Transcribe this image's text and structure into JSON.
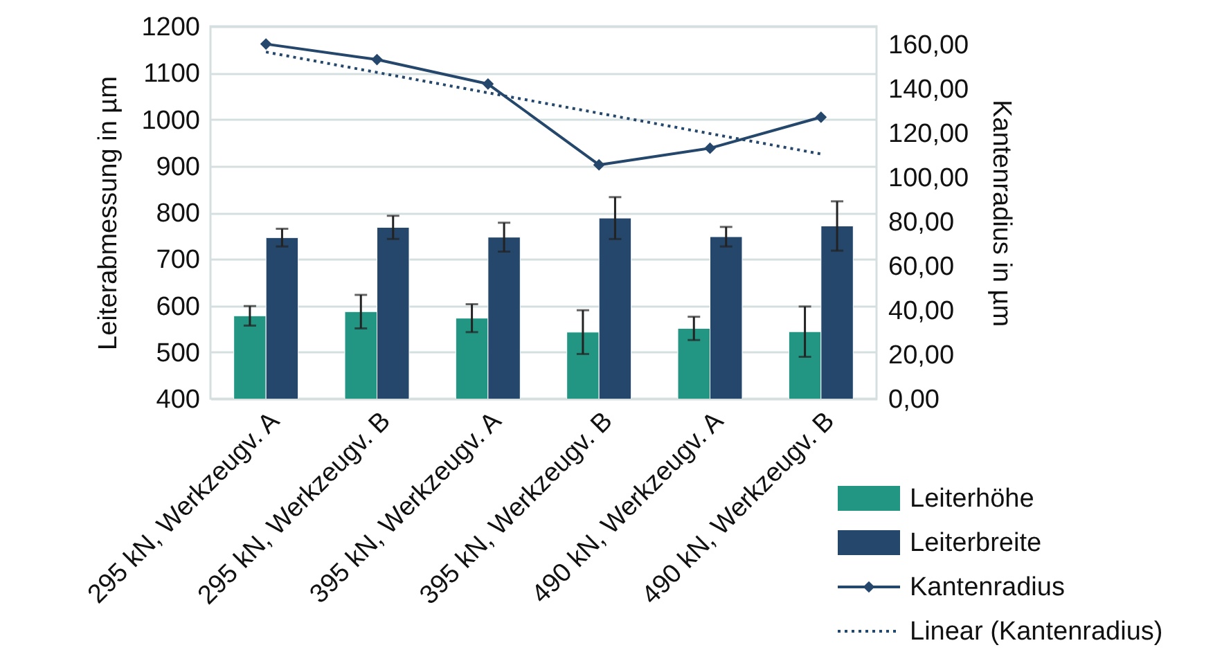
{
  "chart_data": {
    "type": "bar",
    "categories": [
      "295 kN, Werkzeugv. A",
      "295 kN, Werkzeugv. B",
      "395 kN, Werkzeugv. A",
      "395 kN, Werkzeugv. B",
      "490 kN, Werkzeugv. A",
      "490 kN, Werkzeugv. B"
    ],
    "ylabel": "Leiterabmessung in µm",
    "y2label": "Kantenradius in µm",
    "ylim": [
      400,
      1200
    ],
    "yticks": [
      400,
      500,
      600,
      700,
      800,
      900,
      1000,
      1100,
      1200
    ],
    "y2lim": [
      0,
      168
    ],
    "y2ticks": [
      {
        "value": 0,
        "label": "0,00"
      },
      {
        "value": 20,
        "label": "20,00"
      },
      {
        "value": 40,
        "label": "40,00"
      },
      {
        "value": 60,
        "label": "60,00"
      },
      {
        "value": 80,
        "label": "80,00"
      },
      {
        "value": 100,
        "label": "100,00"
      },
      {
        "value": 120,
        "label": "120,00"
      },
      {
        "value": 140,
        "label": "140,00"
      },
      {
        "value": 160,
        "label": "160,00"
      }
    ],
    "grid": "y",
    "legend": "bottom right",
    "series": [
      {
        "name": "Leiterhöhe",
        "color": "#229683",
        "values": [
          578,
          587,
          573,
          543,
          551,
          544
        ],
        "errors": [
          21,
          36,
          30,
          47,
          25,
          54
        ]
      },
      {
        "name": "Leiterbreite",
        "color": "#24476b",
        "values": [
          746,
          768,
          747,
          788,
          748,
          771
        ],
        "errors": [
          19,
          25,
          31,
          45,
          21,
          53
        ]
      },
      {
        "name": "Kantenradius",
        "type": "line",
        "axis": "y2",
        "color": "#24476b",
        "marker": "diamond",
        "line_style": "solid",
        "values": [
          160,
          153,
          142,
          105.5,
          113,
          127
        ]
      },
      {
        "name": "Linear (Kantenradius)",
        "type": "line",
        "axis": "y2",
        "color": "#24476b",
        "marker": "none",
        "line_style": "dotted",
        "values": [
          156.4,
          147.2,
          138,
          128.8,
          119.6,
          110.4
        ]
      }
    ]
  }
}
